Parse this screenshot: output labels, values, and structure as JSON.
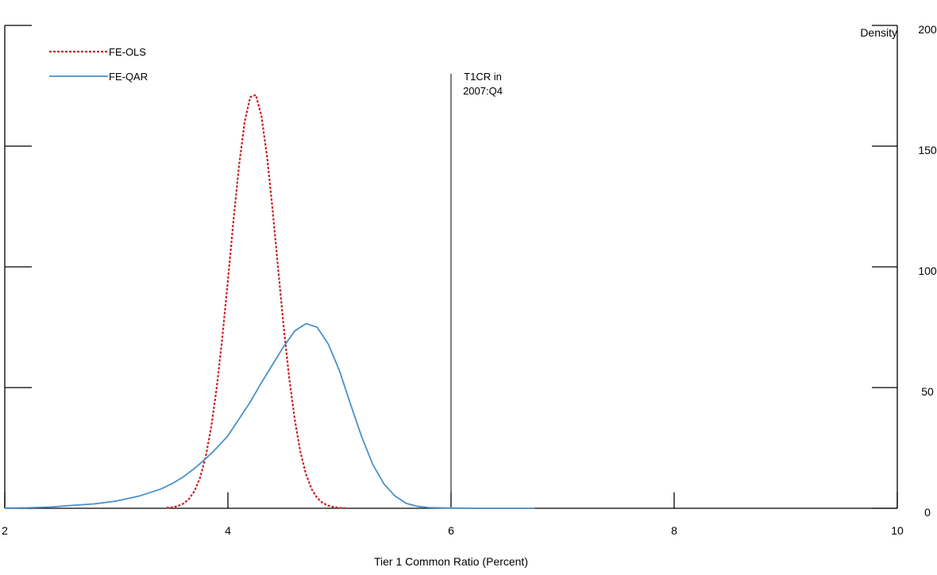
{
  "chart_data": {
    "type": "line",
    "xlabel": "Tier 1 Common Ratio (Percent)",
    "ylabel": "Density",
    "xlim": [
      2,
      10
    ],
    "ylim": [
      0,
      200
    ],
    "xticks": [
      2,
      4,
      6,
      8,
      10
    ],
    "yticks": [
      0,
      50,
      100,
      150,
      200
    ],
    "series": [
      {
        "name": "FE-OLS",
        "color": "#cc2222",
        "dashed": true,
        "x": [
          3.45,
          3.5,
          3.55,
          3.6,
          3.65,
          3.7,
          3.75,
          3.8,
          3.85,
          3.9,
          3.95,
          4.0,
          4.05,
          4.1,
          4.15,
          4.2,
          4.25,
          4.3,
          4.35,
          4.4,
          4.45,
          4.5,
          4.55,
          4.6,
          4.65,
          4.7,
          4.75,
          4.8,
          4.85,
          4.9,
          4.95,
          5.0,
          5.05
        ],
        "values": [
          0.2,
          0.4,
          0.9,
          1.9,
          3.8,
          7.1,
          12.6,
          21.1,
          33.5,
          50.0,
          70.7,
          94.4,
          119.2,
          142.0,
          160.0,
          170.3,
          171.2,
          162.7,
          146.0,
          124.0,
          99.4,
          75.2,
          53.8,
          36.5,
          23.3,
          14.1,
          8.0,
          4.3,
          2.2,
          1.1,
          0.5,
          0.2,
          0.1
        ]
      },
      {
        "name": "FE-QAR",
        "color": "#4a90cc",
        "dashed": false,
        "x": [
          2.0,
          2.2,
          2.4,
          2.6,
          2.8,
          3.0,
          3.2,
          3.4,
          3.5,
          3.6,
          3.7,
          3.8,
          3.9,
          4.0,
          4.1,
          4.2,
          4.3,
          4.4,
          4.5,
          4.6,
          4.7,
          4.8,
          4.9,
          5.0,
          5.1,
          5.2,
          5.3,
          5.4,
          5.5,
          5.6,
          5.7,
          5.8,
          6.0,
          6.2,
          6.5,
          6.75
        ],
        "values": [
          0.1,
          0.2,
          0.5,
          1.2,
          1.8,
          3.0,
          5.0,
          8.0,
          10.2,
          13.0,
          16.5,
          20.5,
          25.0,
          30.0,
          37.0,
          44.0,
          52.0,
          59.5,
          67.0,
          73.5,
          76.5,
          75.0,
          68.0,
          57.0,
          43.0,
          29.5,
          18.0,
          10.0,
          5.0,
          2.0,
          0.8,
          0.3,
          0.1,
          0,
          0,
          0
        ]
      }
    ],
    "vline": {
      "x": 6,
      "top": 180,
      "label": [
        "T1CR in",
        "2007:Q4"
      ]
    }
  }
}
